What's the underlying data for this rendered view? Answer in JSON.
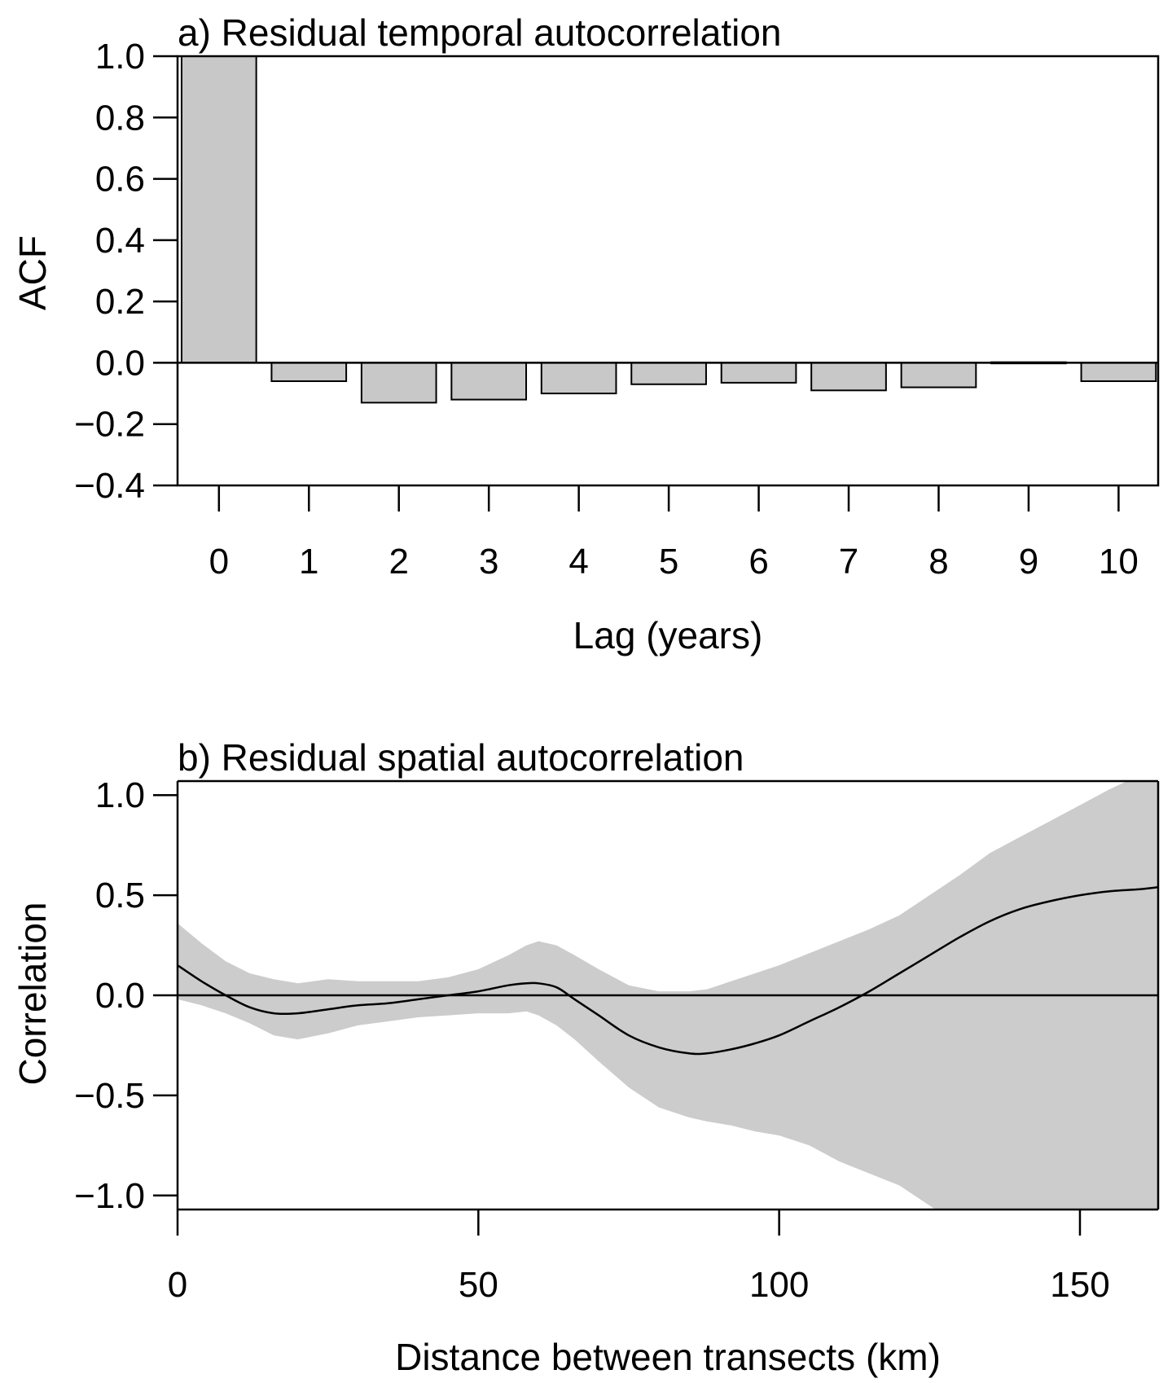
{
  "chart_data": [
    {
      "type": "bar",
      "title": "a) Residual temporal autocorrelation",
      "xlabel": "Lag (years)",
      "ylabel": "ACF",
      "categories": [
        "0",
        "1",
        "2",
        "3",
        "4",
        "5",
        "6",
        "7",
        "8",
        "9",
        "10"
      ],
      "values": [
        1.0,
        -0.06,
        -0.13,
        -0.12,
        -0.1,
        -0.07,
        -0.065,
        -0.09,
        -0.08,
        0.002,
        -0.06
      ],
      "ylim": [
        -0.4,
        1.0
      ],
      "yticks": [
        "1.0",
        "0.8",
        "0.6",
        "0.4",
        "0.2",
        "0.0",
        "−0.2",
        "−0.4"
      ],
      "ytick_values": [
        1.0,
        0.8,
        0.6,
        0.4,
        0.2,
        0.0,
        -0.2,
        -0.4
      ],
      "bar_color": "#c8c8c8",
      "grid": false
    },
    {
      "type": "line",
      "title": "b) Residual spatial autocorrelation",
      "xlabel": "Distance between transects (km)",
      "ylabel": "Correlation",
      "xlim": [
        0,
        163
      ],
      "ylim": [
        -1.07,
        1.07
      ],
      "xticks": [
        "0",
        "50",
        "100",
        "150"
      ],
      "xtick_values": [
        0,
        50,
        100,
        150
      ],
      "yticks": [
        "1.0",
        "0.5",
        "0.0",
        "−0.5",
        "−1.0"
      ],
      "ytick_values": [
        1.0,
        0.5,
        0.0,
        -0.5,
        -1.0
      ],
      "band_color": "#cccccc",
      "grid": false,
      "x": [
        0,
        4,
        8,
        12,
        16,
        20,
        25,
        30,
        35,
        40,
        45,
        50,
        55,
        58,
        60,
        63,
        66,
        70,
        75,
        80,
        85,
        88,
        92,
        96,
        100,
        105,
        110,
        115,
        120,
        125,
        130,
        135,
        140,
        145,
        150,
        155,
        160,
        163
      ],
      "y": [
        0.15,
        0.07,
        0.0,
        -0.06,
        -0.09,
        -0.09,
        -0.07,
        -0.05,
        -0.04,
        -0.02,
        0.0,
        0.02,
        0.05,
        0.06,
        0.06,
        0.04,
        -0.02,
        -0.1,
        -0.2,
        -0.26,
        -0.29,
        -0.29,
        -0.27,
        -0.24,
        -0.2,
        -0.13,
        -0.06,
        0.02,
        0.11,
        0.2,
        0.29,
        0.37,
        0.43,
        0.47,
        0.5,
        0.52,
        0.53,
        0.54
      ],
      "upper": [
        0.36,
        0.26,
        0.17,
        0.11,
        0.08,
        0.06,
        0.08,
        0.07,
        0.07,
        0.07,
        0.09,
        0.13,
        0.2,
        0.25,
        0.27,
        0.25,
        0.2,
        0.13,
        0.05,
        0.02,
        0.02,
        0.03,
        0.07,
        0.11,
        0.15,
        0.21,
        0.27,
        0.33,
        0.4,
        0.5,
        0.6,
        0.71,
        0.79,
        0.87,
        0.95,
        1.03,
        1.1,
        1.15
      ],
      "lower": [
        -0.02,
        -0.05,
        -0.09,
        -0.14,
        -0.2,
        -0.22,
        -0.19,
        -0.15,
        -0.13,
        -0.11,
        -0.1,
        -0.09,
        -0.09,
        -0.08,
        -0.1,
        -0.15,
        -0.22,
        -0.33,
        -0.46,
        -0.56,
        -0.61,
        -0.63,
        -0.65,
        -0.68,
        -0.7,
        -0.75,
        -0.83,
        -0.89,
        -0.95,
        -1.05,
        -1.15,
        -1.22,
        -1.3,
        -1.36,
        -1.42,
        -1.46,
        -1.5,
        -1.52
      ]
    }
  ]
}
